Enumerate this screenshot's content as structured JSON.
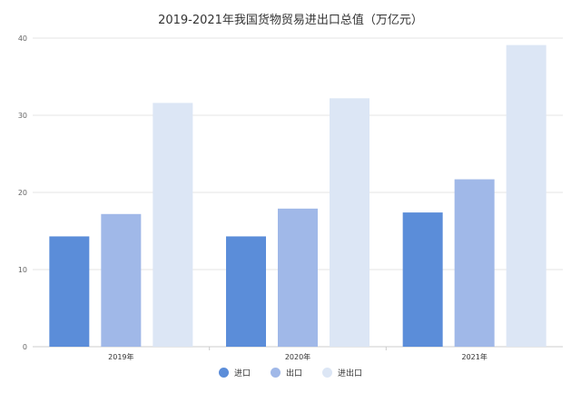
{
  "chart_data": {
    "type": "bar",
    "title": "2019-2021年我国货物贸易进出口总值（万亿元）",
    "categories": [
      "2019年",
      "2020年",
      "2021年"
    ],
    "series": [
      {
        "name": "进口",
        "values": [
          14.3,
          14.3,
          17.4
        ],
        "color": "#5b8dd9"
      },
      {
        "name": "出口",
        "values": [
          17.2,
          17.9,
          21.7
        ],
        "color": "#a0b8e8"
      },
      {
        "name": "进出口",
        "values": [
          31.6,
          32.2,
          39.1
        ],
        "color": "#dce6f5"
      }
    ],
    "ylim": [
      0,
      40
    ],
    "yticks": [
      0,
      10,
      20,
      30,
      40
    ],
    "xlabel": "",
    "ylabel": "",
    "grid": true,
    "legend_position": "bottom"
  }
}
